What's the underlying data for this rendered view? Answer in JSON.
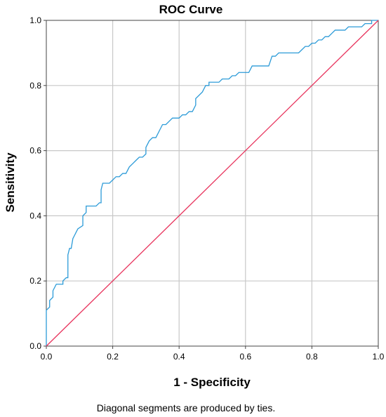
{
  "chart_data": {
    "type": "line",
    "title": "ROC Curve",
    "xlabel": "1 - Specificity",
    "ylabel": "Sensitivity",
    "xlim": [
      0,
      1
    ],
    "ylim": [
      0,
      1
    ],
    "grid": true,
    "x_ticks": [
      "0.0",
      "0.2",
      "0.4",
      "0.6",
      "0.8",
      "1.0"
    ],
    "y_ticks": [
      "0.0",
      "0.2",
      "0.4",
      "0.6",
      "0.8",
      "1.0"
    ],
    "footnote": "Diagonal segments are produced by ties.",
    "series": [
      {
        "color": "#2c9bd8",
        "points": [
          [
            0.0,
            0.0
          ],
          [
            0.0,
            0.11
          ],
          [
            0.01,
            0.12
          ],
          [
            0.01,
            0.14
          ],
          [
            0.02,
            0.15
          ],
          [
            0.02,
            0.17
          ],
          [
            0.03,
            0.19
          ],
          [
            0.05,
            0.19
          ],
          [
            0.05,
            0.2
          ],
          [
            0.06,
            0.21
          ],
          [
            0.065,
            0.21
          ],
          [
            0.065,
            0.28
          ],
          [
            0.07,
            0.3
          ],
          [
            0.075,
            0.3
          ],
          [
            0.08,
            0.33
          ],
          [
            0.085,
            0.34
          ],
          [
            0.09,
            0.35
          ],
          [
            0.095,
            0.36
          ],
          [
            0.11,
            0.37
          ],
          [
            0.11,
            0.4
          ],
          [
            0.12,
            0.41
          ],
          [
            0.12,
            0.43
          ],
          [
            0.15,
            0.43
          ],
          [
            0.16,
            0.44
          ],
          [
            0.165,
            0.44
          ],
          [
            0.165,
            0.48
          ],
          [
            0.17,
            0.5
          ],
          [
            0.18,
            0.5
          ],
          [
            0.19,
            0.5
          ],
          [
            0.2,
            0.51
          ],
          [
            0.21,
            0.52
          ],
          [
            0.22,
            0.52
          ],
          [
            0.23,
            0.53
          ],
          [
            0.24,
            0.53
          ],
          [
            0.25,
            0.55
          ],
          [
            0.26,
            0.56
          ],
          [
            0.27,
            0.57
          ],
          [
            0.28,
            0.58
          ],
          [
            0.29,
            0.58
          ],
          [
            0.3,
            0.59
          ],
          [
            0.3,
            0.61
          ],
          [
            0.31,
            0.63
          ],
          [
            0.32,
            0.64
          ],
          [
            0.33,
            0.64
          ],
          [
            0.34,
            0.66
          ],
          [
            0.35,
            0.68
          ],
          [
            0.36,
            0.68
          ],
          [
            0.37,
            0.69
          ],
          [
            0.38,
            0.7
          ],
          [
            0.4,
            0.7
          ],
          [
            0.41,
            0.71
          ],
          [
            0.42,
            0.71
          ],
          [
            0.43,
            0.72
          ],
          [
            0.44,
            0.72
          ],
          [
            0.45,
            0.74
          ],
          [
            0.45,
            0.76
          ],
          [
            0.47,
            0.78
          ],
          [
            0.48,
            0.8
          ],
          [
            0.49,
            0.8
          ],
          [
            0.49,
            0.81
          ],
          [
            0.52,
            0.81
          ],
          [
            0.53,
            0.82
          ],
          [
            0.55,
            0.82
          ],
          [
            0.56,
            0.83
          ],
          [
            0.57,
            0.83
          ],
          [
            0.58,
            0.84
          ],
          [
            0.61,
            0.84
          ],
          [
            0.62,
            0.86
          ],
          [
            0.67,
            0.86
          ],
          [
            0.68,
            0.89
          ],
          [
            0.69,
            0.89
          ],
          [
            0.7,
            0.9
          ],
          [
            0.76,
            0.9
          ],
          [
            0.77,
            0.91
          ],
          [
            0.78,
            0.92
          ],
          [
            0.79,
            0.92
          ],
          [
            0.8,
            0.93
          ],
          [
            0.81,
            0.93
          ],
          [
            0.82,
            0.94
          ],
          [
            0.83,
            0.94
          ],
          [
            0.84,
            0.95
          ],
          [
            0.85,
            0.95
          ],
          [
            0.86,
            0.96
          ],
          [
            0.87,
            0.97
          ],
          [
            0.9,
            0.97
          ],
          [
            0.91,
            0.98
          ],
          [
            0.95,
            0.98
          ],
          [
            0.96,
            0.99
          ],
          [
            0.98,
            0.99
          ],
          [
            0.98,
            1.0
          ],
          [
            1.0,
            1.0
          ]
        ]
      },
      {
        "color": "#e8355e",
        "points": [
          [
            0,
            0
          ],
          [
            1,
            1
          ]
        ]
      }
    ]
  }
}
